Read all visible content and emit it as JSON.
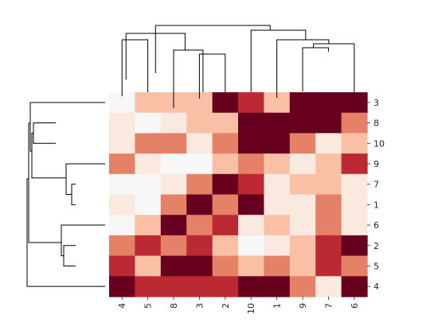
{
  "chart_data": {
    "type": "heatmap",
    "title": "",
    "xlabel": "",
    "ylabel": "",
    "colormap": "RdBu_r (reds only: near-white = low, dark maroon = high)",
    "value_range": [
      0,
      9
    ],
    "rows": [
      "3",
      "8",
      "10",
      "9",
      "7",
      "1",
      "6",
      "2",
      "5",
      "4"
    ],
    "columns": [
      "4",
      "5",
      "8",
      "3",
      "2",
      "10",
      "1",
      "9",
      "7",
      "6"
    ],
    "values": [
      [
        0,
        3,
        3,
        3,
        9,
        7,
        3,
        9,
        9,
        9
      ],
      [
        1,
        0,
        1,
        3,
        3,
        9,
        9,
        9,
        9,
        5
      ],
      [
        1,
        5,
        5,
        1,
        5,
        9,
        9,
        5,
        1,
        3
      ],
      [
        5,
        1,
        0,
        0,
        3,
        5,
        3,
        1,
        3,
        7
      ],
      [
        0,
        0,
        1,
        5,
        9,
        7,
        1,
        3,
        3,
        1
      ],
      [
        1,
        0,
        5,
        9,
        5,
        9,
        1,
        1,
        5,
        1
      ],
      [
        0,
        3,
        9,
        5,
        7,
        1,
        3,
        1,
        5,
        1
      ],
      [
        5,
        7,
        5,
        7,
        3,
        0,
        1,
        3,
        7,
        9
      ],
      [
        7,
        3,
        9,
        9,
        5,
        3,
        5,
        3,
        7,
        5
      ],
      [
        9,
        7,
        7,
        7,
        7,
        9,
        9,
        5,
        1,
        9
      ]
    ],
    "row_dendrogram": true,
    "column_dendrogram": true,
    "grid": false,
    "legend": "none"
  }
}
